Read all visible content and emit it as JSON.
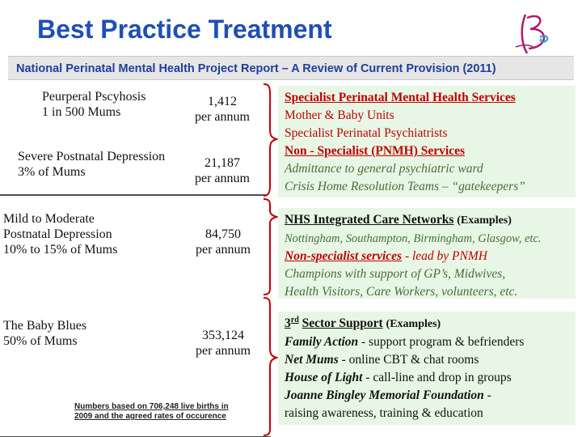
{
  "header": {
    "title": "Best Practice Treatment",
    "subtitle": "National Perinatal Mental Health Project Report – A Review of Current Provision (2011)"
  },
  "pyramid": {
    "tier1": {
      "label_line1": "Peurperal Pscyhosis",
      "label_line2": "1 in 500 Mums",
      "count": "1,412",
      "unit": "per annum"
    },
    "tier2": {
      "label_line1": "Severe Postnatal Depression",
      "label_line2": "3% of Mums",
      "count": "21,187",
      "unit": "per annum"
    },
    "tier3": {
      "label_line1": "Mild to Moderate",
      "label_line2": "Postnatal Depression",
      "label_line3": "10% to 15% of Mums",
      "count": "84,750",
      "unit": "per annum"
    },
    "tier4": {
      "label_line1": "The Baby Blues",
      "label_line2": "50% of Mums",
      "count": "353,124",
      "unit": "per annum"
    },
    "note_line1": "Numbers based on 706,248 live births in",
    "note_line2": "2009 and the agreed rates of occurence"
  },
  "panels": {
    "specialist": {
      "heading": "Specialist Perinatal Mental Health Services",
      "line1": "Mother & Baby Units",
      "line2": "Specialist Perinatal Psychiatrists",
      "heading2": "Non - Specialist (PNMH) Services",
      "line3": "Admittance to general psychiatric ward",
      "line4": "Crisis Home Resolution Teams – “gatekeepers”"
    },
    "nhs": {
      "heading": "NHS Integrated Care Networks",
      "heading_suffix": "(Examples)",
      "line1": "Nottingham, Southampton, Birmingham, Glasgow, etc.",
      "nonspec": "Non-specialist services",
      "line2_rest": "- lead by PNMH",
      "line3": "Champions with support of GP’s, Midwives,",
      "line4": "Health Visitors, Care Workers, volunteers, etc."
    },
    "third": {
      "heading_num": "3",
      "heading_sup": "rd",
      "heading": "Sector Support",
      "heading_suffix": "(Examples)",
      "item1_name": "Family Action",
      "item1_desc": "- support program & befrienders",
      "item2_name": "Net Mums",
      "item2_desc": "- online CBT & chat rooms",
      "item3_name": "House of Light",
      "item3_desc": "- call-line and drop in groups",
      "item4_name": "Joanne Bingley Memorial Foundation",
      "item4_desc": "-",
      "item4_line2": "raising awareness, training & education"
    }
  },
  "colors": {
    "title": "#1f4fb4",
    "accent_red": "#c00000",
    "panel_bg": "#e8f7e5",
    "logo": "#b0186e"
  }
}
